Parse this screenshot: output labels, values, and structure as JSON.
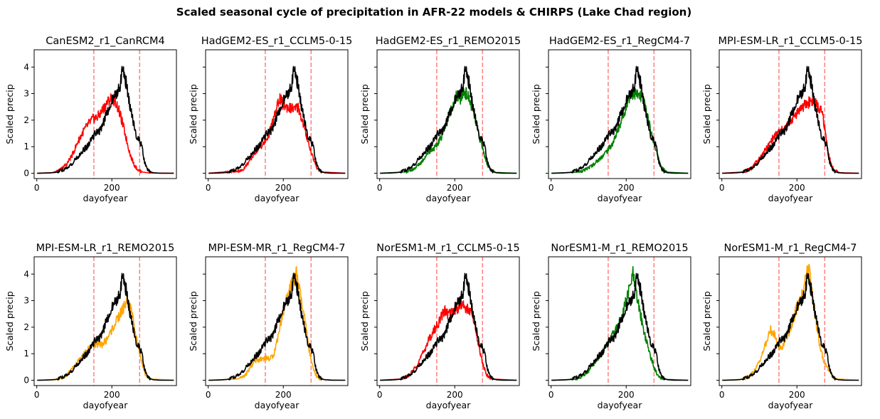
{
  "figure": {
    "suptitle": "Scaled seasonal cycle of precipitation in AFR-22 models & CHIRPS (Lake Chad region)"
  },
  "chart_data": {
    "type": "line",
    "layout": "2 rows x 5 columns, shared y axis per row",
    "xlabel": "dayofyear",
    "ylabel": "Scaled precip",
    "xlim": [
      -7,
      372
    ],
    "ylim": [
      -0.2,
      4.65
    ],
    "xticks": [
      0,
      200
    ],
    "yticks": [
      0,
      1,
      2,
      3,
      4
    ],
    "reference_lines": {
      "x": [
        152,
        274
      ],
      "color": "#ff8080",
      "style": "dashed"
    },
    "observed": {
      "color": "#000000",
      "points": [
        [
          0,
          0
        ],
        [
          30,
          0.01
        ],
        [
          50,
          0.03
        ],
        [
          70,
          0.12
        ],
        [
          90,
          0.3
        ],
        [
          110,
          0.62
        ],
        [
          125,
          0.9
        ],
        [
          135,
          1.0
        ],
        [
          145,
          1.25
        ],
        [
          155,
          1.5
        ],
        [
          165,
          1.55
        ],
        [
          175,
          1.8
        ],
        [
          185,
          2.2
        ],
        [
          195,
          2.6
        ],
        [
          205,
          2.85
        ],
        [
          215,
          3.1
        ],
        [
          222,
          3.35
        ],
        [
          228,
          3.9
        ],
        [
          233,
          3.7
        ],
        [
          240,
          3.3
        ],
        [
          247,
          2.6
        ],
        [
          255,
          2.1
        ],
        [
          262,
          1.6
        ],
        [
          268,
          1.3
        ],
        [
          274,
          1.2
        ],
        [
          280,
          1.0
        ],
        [
          286,
          0.5
        ],
        [
          292,
          0.2
        ],
        [
          300,
          0.07
        ],
        [
          310,
          0.02
        ],
        [
          330,
          0.0
        ],
        [
          365,
          0.0
        ]
      ]
    },
    "panels": [
      {
        "title": "CanESM2_r1_CanRCM4",
        "color": "#ff0000",
        "points": [
          [
            0,
            0
          ],
          [
            40,
            0.02
          ],
          [
            60,
            0.1
          ],
          [
            80,
            0.35
          ],
          [
            95,
            0.7
          ],
          [
            110,
            1.2
          ],
          [
            125,
            1.6
          ],
          [
            140,
            1.9
          ],
          [
            150,
            2.05
          ],
          [
            160,
            2.1
          ],
          [
            170,
            2.25
          ],
          [
            180,
            2.5
          ],
          [
            190,
            2.7
          ],
          [
            200,
            2.85
          ],
          [
            210,
            2.7
          ],
          [
            220,
            2.3
          ],
          [
            230,
            1.8
          ],
          [
            240,
            1.2
          ],
          [
            250,
            0.65
          ],
          [
            260,
            0.3
          ],
          [
            270,
            0.12
          ],
          [
            280,
            0.05
          ],
          [
            300,
            0.01
          ],
          [
            365,
            0
          ]
        ]
      },
      {
        "title": "HadGEM2-ES_r1_CCLM5-0-15",
        "color": "#ff0000",
        "points": [
          [
            0,
            0
          ],
          [
            90,
            0.1
          ],
          [
            110,
            0.45
          ],
          [
            125,
            0.8
          ],
          [
            140,
            1.0
          ],
          [
            150,
            1.15
          ],
          [
            160,
            1.4
          ],
          [
            170,
            1.85
          ],
          [
            180,
            2.3
          ],
          [
            190,
            2.85
          ],
          [
            200,
            2.55
          ],
          [
            210,
            2.5
          ],
          [
            220,
            2.45
          ],
          [
            230,
            2.4
          ],
          [
            240,
            2.5
          ],
          [
            250,
            2.0
          ],
          [
            260,
            1.5
          ],
          [
            270,
            1.0
          ],
          [
            280,
            0.55
          ],
          [
            290,
            0.2
          ],
          [
            300,
            0.05
          ],
          [
            365,
            0
          ]
        ]
      },
      {
        "title": "HadGEM2-ES_r1_REMO2015",
        "color": "#008000",
        "points": [
          [
            0,
            0
          ],
          [
            70,
            0.05
          ],
          [
            90,
            0.15
          ],
          [
            110,
            0.4
          ],
          [
            130,
            0.8
          ],
          [
            150,
            1.0
          ],
          [
            165,
            1.4
          ],
          [
            180,
            2.0
          ],
          [
            195,
            2.6
          ],
          [
            205,
            2.9
          ],
          [
            215,
            2.8
          ],
          [
            225,
            3.1
          ],
          [
            235,
            2.9
          ],
          [
            245,
            2.5
          ],
          [
            255,
            2.0
          ],
          [
            265,
            1.4
          ],
          [
            275,
            0.9
          ],
          [
            285,
            0.4
          ],
          [
            295,
            0.12
          ],
          [
            310,
            0.03
          ],
          [
            365,
            0
          ]
        ]
      },
      {
        "title": "HadGEM2-ES_r1_RegCM4-7",
        "color": "#008000",
        "points": [
          [
            0,
            0
          ],
          [
            70,
            0.04
          ],
          [
            90,
            0.12
          ],
          [
            110,
            0.3
          ],
          [
            130,
            0.55
          ],
          [
            150,
            0.85
          ],
          [
            165,
            1.15
          ],
          [
            180,
            1.7
          ],
          [
            195,
            2.3
          ],
          [
            205,
            2.8
          ],
          [
            215,
            3.0
          ],
          [
            225,
            3.0
          ],
          [
            235,
            2.9
          ],
          [
            245,
            2.8
          ],
          [
            255,
            2.3
          ],
          [
            265,
            1.6
          ],
          [
            275,
            1.1
          ],
          [
            285,
            0.6
          ],
          [
            295,
            0.2
          ],
          [
            310,
            0.04
          ],
          [
            365,
            0
          ]
        ]
      },
      {
        "title": "MPI-ESM-LR_r1_CCLM5-0-15",
        "color": "#ff0000",
        "points": [
          [
            0,
            0
          ],
          [
            60,
            0.05
          ],
          [
            80,
            0.2
          ],
          [
            100,
            0.55
          ],
          [
            120,
            0.95
          ],
          [
            135,
            1.3
          ],
          [
            150,
            1.55
          ],
          [
            165,
            1.65
          ],
          [
            180,
            1.9
          ],
          [
            195,
            2.2
          ],
          [
            210,
            2.45
          ],
          [
            225,
            2.6
          ],
          [
            238,
            2.75
          ],
          [
            248,
            2.65
          ],
          [
            258,
            2.45
          ],
          [
            268,
            2.25
          ],
          [
            275,
            1.6
          ],
          [
            283,
            0.8
          ],
          [
            292,
            0.3
          ],
          [
            300,
            0.1
          ],
          [
            315,
            0.02
          ],
          [
            365,
            0
          ]
        ]
      },
      {
        "title": "MPI-ESM-LR_r1_REMO2015",
        "color": "#ffa500",
        "points": [
          [
            0,
            0
          ],
          [
            50,
            0.02
          ],
          [
            70,
            0.1
          ],
          [
            90,
            0.35
          ],
          [
            110,
            0.7
          ],
          [
            130,
            1.05
          ],
          [
            145,
            1.3
          ],
          [
            158,
            1.4
          ],
          [
            170,
            1.3
          ],
          [
            185,
            1.5
          ],
          [
            200,
            1.9
          ],
          [
            215,
            2.3
          ],
          [
            230,
            2.7
          ],
          [
            240,
            3.0
          ],
          [
            250,
            2.7
          ],
          [
            260,
            2.1
          ],
          [
            270,
            1.3
          ],
          [
            280,
            0.6
          ],
          [
            290,
            0.2
          ],
          [
            300,
            0.05
          ],
          [
            365,
            0
          ]
        ]
      },
      {
        "title": "MPI-ESM-MR_r1_RegCM4-7",
        "color": "#ffa500",
        "points": [
          [
            0,
            0
          ],
          [
            80,
            0.05
          ],
          [
            100,
            0.2
          ],
          [
            115,
            0.55
          ],
          [
            125,
            0.75
          ],
          [
            140,
            0.8
          ],
          [
            155,
            0.85
          ],
          [
            165,
            0.8
          ],
          [
            175,
            1.0
          ],
          [
            185,
            1.6
          ],
          [
            195,
            2.3
          ],
          [
            205,
            2.9
          ],
          [
            215,
            3.3
          ],
          [
            225,
            3.7
          ],
          [
            235,
            4.0
          ],
          [
            243,
            3.4
          ],
          [
            250,
            2.8
          ],
          [
            258,
            2.2
          ],
          [
            265,
            1.5
          ],
          [
            272,
            0.9
          ],
          [
            280,
            0.4
          ],
          [
            290,
            0.12
          ],
          [
            300,
            0.03
          ],
          [
            365,
            0
          ]
        ]
      },
      {
        "title": "NorESM1-M_r1_CCLM5-0-15",
        "color": "#ff0000",
        "points": [
          [
            0,
            0
          ],
          [
            60,
            0.05
          ],
          [
            80,
            0.2
          ],
          [
            100,
            0.6
          ],
          [
            115,
            1.0
          ],
          [
            130,
            1.5
          ],
          [
            142,
            1.8
          ],
          [
            152,
            2.05
          ],
          [
            162,
            2.3
          ],
          [
            172,
            2.65
          ],
          [
            182,
            2.5
          ],
          [
            192,
            2.55
          ],
          [
            205,
            2.7
          ],
          [
            215,
            2.85
          ],
          [
            225,
            2.8
          ],
          [
            235,
            2.65
          ],
          [
            245,
            2.5
          ],
          [
            255,
            2.0
          ],
          [
            265,
            1.2
          ],
          [
            275,
            0.6
          ],
          [
            285,
            0.2
          ],
          [
            295,
            0.05
          ],
          [
            365,
            0
          ]
        ]
      },
      {
        "title": "NorESM1-M_r1_REMO2015",
        "color": "#008000",
        "points": [
          [
            0,
            0
          ],
          [
            60,
            0.03
          ],
          [
            80,
            0.12
          ],
          [
            100,
            0.35
          ],
          [
            120,
            0.75
          ],
          [
            140,
            1.1
          ],
          [
            155,
            1.5
          ],
          [
            168,
            1.8
          ],
          [
            180,
            2.1
          ],
          [
            190,
            2.5
          ],
          [
            200,
            3.0
          ],
          [
            210,
            3.5
          ],
          [
            218,
            4.0
          ],
          [
            226,
            3.3
          ],
          [
            235,
            2.7
          ],
          [
            245,
            2.0
          ],
          [
            255,
            1.4
          ],
          [
            265,
            0.9
          ],
          [
            275,
            0.45
          ],
          [
            285,
            0.15
          ],
          [
            295,
            0.04
          ],
          [
            365,
            0
          ]
        ]
      },
      {
        "title": "NorESM1-M_r1_RegCM4-7",
        "color": "#ffa500",
        "points": [
          [
            0,
            0
          ],
          [
            50,
            0.02
          ],
          [
            70,
            0.1
          ],
          [
            90,
            0.4
          ],
          [
            105,
            0.9
          ],
          [
            118,
            1.4
          ],
          [
            130,
            1.9
          ],
          [
            140,
            1.7
          ],
          [
            150,
            1.3
          ],
          [
            160,
            1.2
          ],
          [
            170,
            1.6
          ],
          [
            182,
            1.9
          ],
          [
            192,
            2.4
          ],
          [
            202,
            2.8
          ],
          [
            212,
            3.2
          ],
          [
            222,
            3.7
          ],
          [
            230,
            4.3
          ],
          [
            238,
            3.6
          ],
          [
            246,
            2.7
          ],
          [
            255,
            1.8
          ],
          [
            262,
            1.2
          ],
          [
            270,
            0.8
          ],
          [
            278,
            0.55
          ],
          [
            285,
            0.4
          ],
          [
            295,
            0.15
          ],
          [
            305,
            0.05
          ],
          [
            365,
            0
          ]
        ]
      }
    ]
  }
}
